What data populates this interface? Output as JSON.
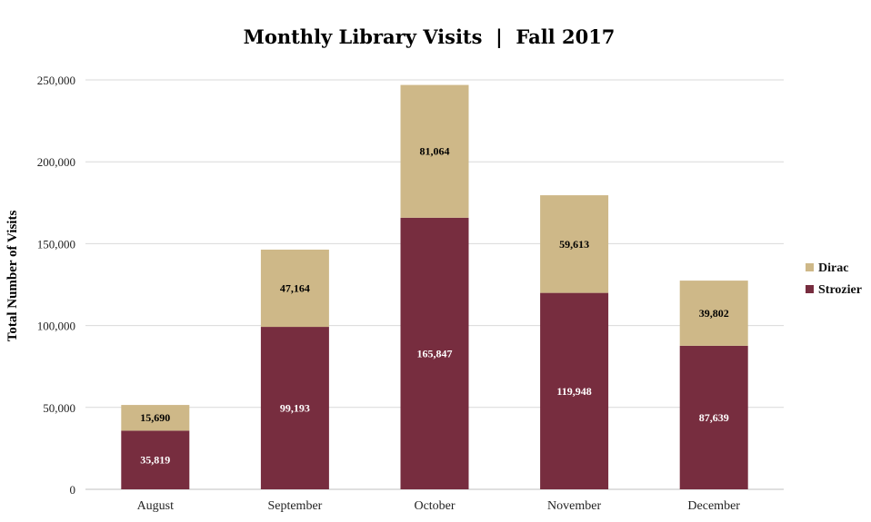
{
  "chart_data": {
    "type": "bar",
    "stacked": true,
    "title": "Monthly Library Visits  |  Fall 2017",
    "xlabel": "",
    "ylabel": "Total Number of Visits",
    "categories": [
      "August",
      "September",
      "October",
      "November",
      "December"
    ],
    "ylim": [
      0,
      250000
    ],
    "yticks": [
      0,
      50000,
      100000,
      150000,
      200000,
      250000
    ],
    "ytick_labels": [
      "0",
      "50,000",
      "100,000",
      "150,000",
      "200,000",
      "250,000"
    ],
    "grid": true,
    "legend_position": "right",
    "series": [
      {
        "name": "Strozier",
        "color": "#772d3f",
        "label_color": "#ffffff",
        "values": [
          35819,
          99193,
          165847,
          119948,
          87639
        ],
        "labels": [
          "35,819",
          "99,193",
          "165,847",
          "119,948",
          "87,639"
        ]
      },
      {
        "name": "Dirac",
        "color": "#ceb888",
        "label_color": "#000000",
        "values": [
          15690,
          47164,
          81064,
          59613,
          39802
        ],
        "labels": [
          "15,690",
          "47,164",
          "81,064",
          "59,613",
          "39,802"
        ]
      }
    ],
    "legend_order": [
      "Dirac",
      "Strozier"
    ]
  }
}
